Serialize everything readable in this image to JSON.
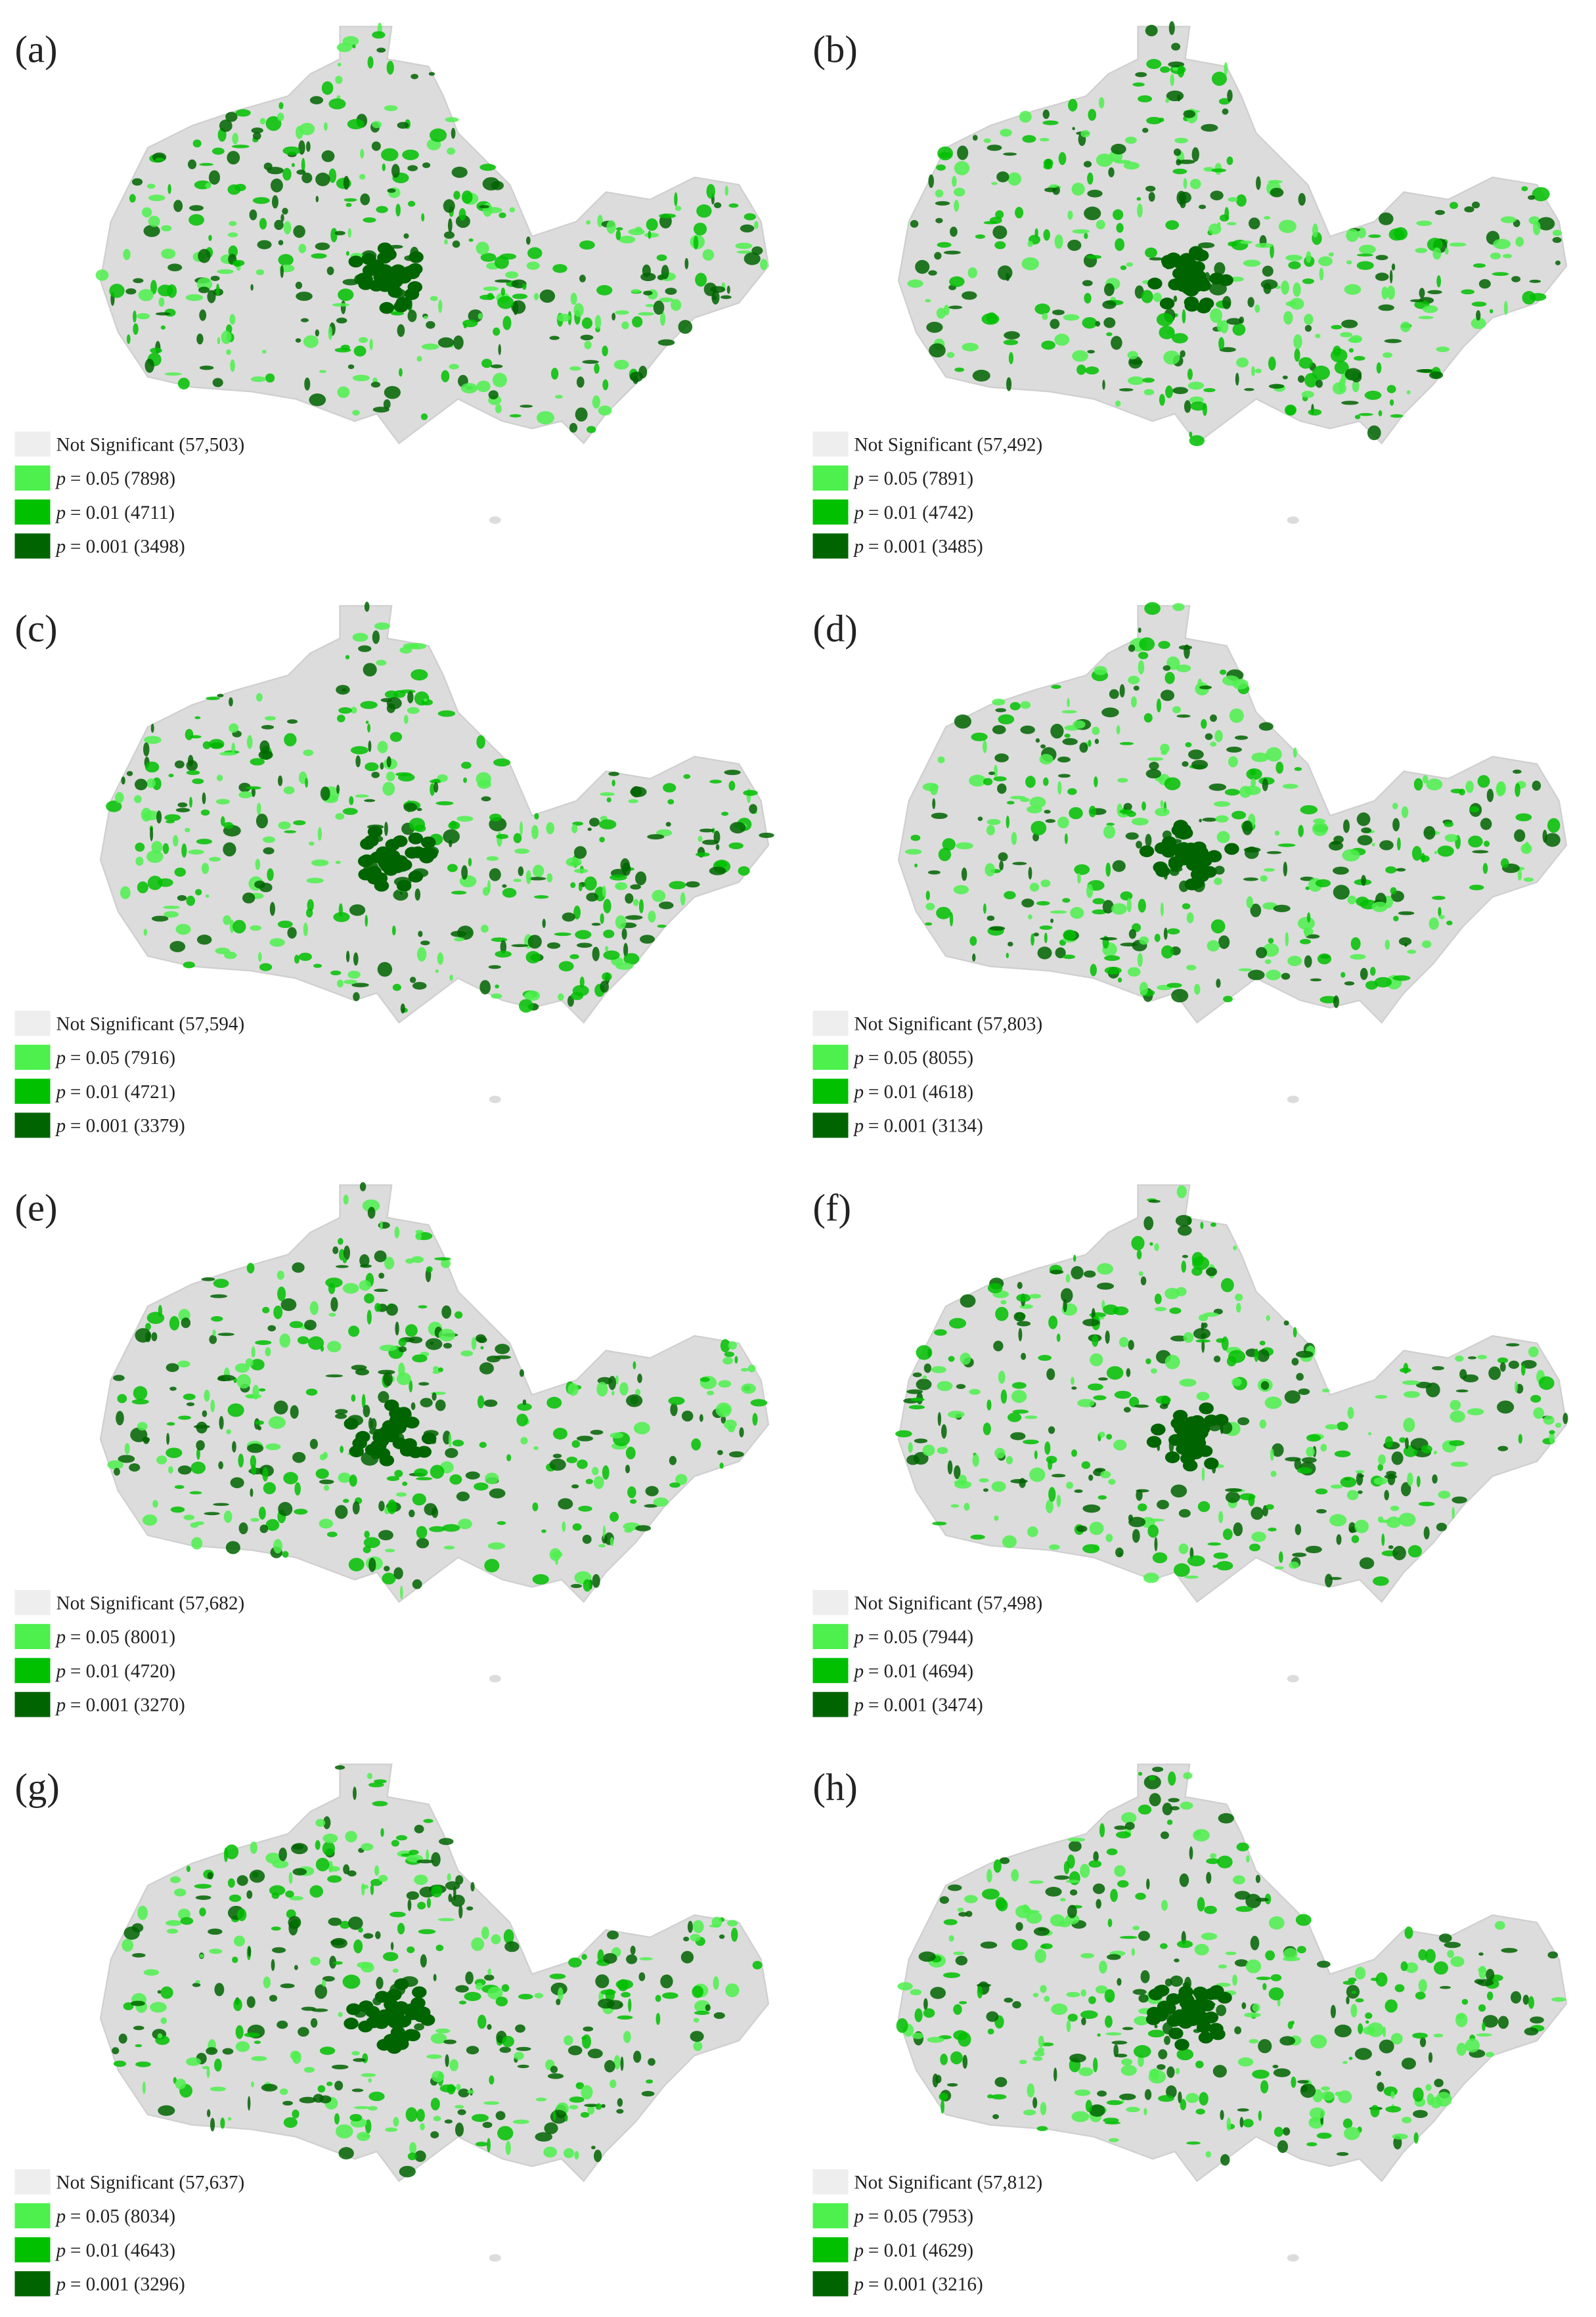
{
  "panels": [
    {
      "label": "(a)",
      "legend": [
        {
          "text": "Not Significant (57,503)"
        },
        {
          "symbol": "p",
          "text": "= 0.05 (7898)"
        },
        {
          "symbol": "p",
          "text": "= 0.01 (4711)"
        },
        {
          "symbol": "p",
          "text": "= 0.001 (3498)"
        }
      ]
    },
    {
      "label": "(b)",
      "legend": [
        {
          "text": "Not Significant (57,492)"
        },
        {
          "symbol": "p",
          "text": "= 0.05 (7891)"
        },
        {
          "symbol": "p",
          "text": "= 0.01 (4742)"
        },
        {
          "symbol": "p",
          "text": "= 0.001 (3485)"
        }
      ]
    },
    {
      "label": "(c)",
      "legend": [
        {
          "text": "Not Significant (57,594)"
        },
        {
          "symbol": "p",
          "text": "= 0.05 (7916)"
        },
        {
          "symbol": "p",
          "text": "= 0.01 (4721)"
        },
        {
          "symbol": "p",
          "text": "= 0.001 (3379)"
        }
      ]
    },
    {
      "label": "(d)",
      "legend": [
        {
          "text": "Not Significant (57,803)"
        },
        {
          "symbol": "p",
          "text": "= 0.05 (8055)"
        },
        {
          "symbol": "p",
          "text": "= 0.01 (4618)"
        },
        {
          "symbol": "p",
          "text": "= 0.001 (3134)"
        }
      ]
    },
    {
      "label": "(e)",
      "legend": [
        {
          "text": "Not Significant (57,682)"
        },
        {
          "symbol": "p",
          "text": "= 0.05 (8001)"
        },
        {
          "symbol": "p",
          "text": "= 0.01 (4720)"
        },
        {
          "symbol": "p",
          "text": "= 0.001 (3270)"
        }
      ]
    },
    {
      "label": "(f)",
      "legend": [
        {
          "text": "Not Significant (57,498)"
        },
        {
          "symbol": "p",
          "text": "= 0.05 (7944)"
        },
        {
          "symbol": "p",
          "text": "= 0.01 (4694)"
        },
        {
          "symbol": "p",
          "text": "= 0.001 (3474)"
        }
      ]
    },
    {
      "label": "(g)",
      "legend": [
        {
          "text": "Not Significant (57,637)"
        },
        {
          "symbol": "p",
          "text": "= 0.05 (8034)"
        },
        {
          "symbol": "p",
          "text": "= 0.01 (4643)"
        },
        {
          "symbol": "p",
          "text": "= 0.001 (3296)"
        }
      ]
    },
    {
      "label": "(h)",
      "legend": [
        {
          "text": "Not Significant (57,812)"
        },
        {
          "symbol": "p",
          "text": "= 0.05 (7953)"
        },
        {
          "symbol": "p",
          "text": "= 0.01 (4629)"
        },
        {
          "symbol": "p",
          "text": "= 0.001 (3216)"
        }
      ]
    }
  ]
}
